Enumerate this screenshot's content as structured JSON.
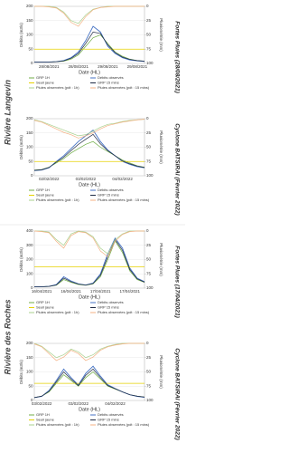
{
  "groups": [
    "Rivière Langevin",
    "Rivière des Roches"
  ],
  "chart_data": [
    {
      "type": "line",
      "title": "Fortes Pluies (28/08/2021)",
      "xlabel": "Date (HL)",
      "ylabel": "Débits (m3/s)",
      "y2label": "Pluviométrie (mm)",
      "categories": [
        null,
        null,
        "28/08/2021",
        null,
        null,
        null,
        "28/08/2021",
        null,
        null,
        null,
        "29/08/2021",
        null,
        null,
        null,
        "29/08/2021",
        null
      ],
      "ylim": [
        0,
        200
      ],
      "yticks": [
        0,
        50,
        100,
        150,
        200
      ],
      "y2lim": [
        100,
        0
      ],
      "y2ticks": [
        0,
        25,
        50,
        75,
        100
      ],
      "series": [
        {
          "name": "GRP 1H",
          "color": "#70ad47",
          "values": [
            5,
            5,
            5,
            6,
            8,
            15,
            30,
            60,
            90,
            100,
            70,
            40,
            25,
            15,
            10,
            8
          ]
        },
        {
          "name": "Débits observés",
          "color": "#4472c4",
          "values": [
            5,
            5,
            5,
            6,
            10,
            20,
            40,
            80,
            130,
            110,
            60,
            35,
            20,
            12,
            9,
            7
          ]
        },
        {
          "name": "Seuil jaune",
          "color": "#e6d200",
          "values": [
            50,
            50,
            50,
            50,
            50,
            50,
            50,
            50,
            50,
            50,
            50,
            50,
            50,
            50,
            50,
            50
          ]
        },
        {
          "name": "GRP 15 mins",
          "color": "#1f2a44",
          "values": [
            5,
            5,
            5,
            6,
            9,
            18,
            35,
            70,
            110,
            105,
            65,
            38,
            22,
            14,
            10,
            8
          ]
        },
        {
          "name": "Pluies observées (pdt : 1h)",
          "color": "#a9d18e",
          "axis": "y2",
          "values": [
            0,
            0,
            0,
            2,
            10,
            25,
            30,
            15,
            5,
            2,
            0,
            0,
            0,
            0,
            0,
            0
          ]
        },
        {
          "name": "Pluies observées (pdt : 15 mins)",
          "color": "#f4b183",
          "axis": "y2",
          "values": [
            0,
            0,
            1,
            3,
            12,
            28,
            35,
            18,
            6,
            2,
            1,
            0,
            0,
            0,
            0,
            0
          ]
        }
      ]
    },
    {
      "type": "line",
      "title": "Cyclone BATSIRAI (Février 2022)",
      "xlabel": "Date (HL)",
      "ylabel": "Débits (m3/s)",
      "y2label": "Pluviométrie (mm)",
      "categories": [
        null,
        null,
        "02/02/2022",
        null,
        null,
        null,
        null,
        "03/02/2022",
        null,
        null,
        null,
        null,
        "04/02/2022",
        null,
        null,
        null
      ],
      "ylim": [
        0,
        200
      ],
      "yticks": [
        0,
        50,
        100,
        150,
        200
      ],
      "y2lim": [
        100,
        0
      ],
      "y2ticks": [
        0,
        25,
        50,
        75,
        100
      ],
      "series": [
        {
          "name": "GRP 1H",
          "color": "#70ad47",
          "values": [
            20,
            22,
            30,
            45,
            60,
            80,
            95,
            110,
            120,
            100,
            85,
            70,
            55,
            45,
            35,
            30
          ]
        },
        {
          "name": "Débits observés",
          "color": "#4472c4",
          "values": [
            18,
            20,
            28,
            50,
            70,
            95,
            120,
            140,
            160,
            120,
            90,
            70,
            50,
            40,
            32,
            28
          ]
        },
        {
          "name": "Seuil jaune",
          "color": "#e6d200",
          "values": [
            50,
            50,
            50,
            50,
            50,
            50,
            50,
            50,
            50,
            50,
            50,
            50,
            50,
            50,
            50,
            50
          ]
        },
        {
          "name": "GRP 15 mins",
          "color": "#1f2a44",
          "values": [
            19,
            21,
            29,
            48,
            65,
            88,
            110,
            128,
            145,
            112,
            88,
            70,
            52,
            42,
            34,
            29
          ]
        },
        {
          "name": "Pluies observées (pdt : 1h)",
          "color": "#a9d18e",
          "axis": "y2",
          "values": [
            2,
            5,
            10,
            15,
            20,
            25,
            30,
            28,
            22,
            15,
            10,
            8,
            5,
            3,
            2,
            1
          ]
        },
        {
          "name": "Pluies observées (pdt : 15 mins)",
          "color": "#f4b183",
          "axis": "y2",
          "values": [
            3,
            6,
            12,
            18,
            24,
            28,
            34,
            30,
            25,
            18,
            12,
            9,
            6,
            4,
            2,
            1
          ]
        }
      ]
    },
    {
      "type": "line",
      "title": "Fortes Pluies (17/04/2021)",
      "xlabel": "Date (HL)",
      "ylabel": "Débits (m3/s)",
      "y2label": "Pluviométrie (mm)",
      "categories": [
        null,
        "16/04/2021",
        null,
        null,
        null,
        "16/04/2021",
        null,
        null,
        null,
        "17/04/2021",
        null,
        null,
        null,
        "17/04/2021",
        null,
        null
      ],
      "ylim": [
        0,
        400
      ],
      "yticks": [
        0,
        100,
        200,
        300,
        400
      ],
      "y2lim": [
        100,
        0
      ],
      "y2ticks": [
        0,
        25,
        50,
        75,
        100
      ],
      "series": [
        {
          "name": "GRP 1H",
          "color": "#70ad47",
          "values": [
            10,
            10,
            12,
            20,
            60,
            40,
            25,
            20,
            30,
            80,
            200,
            330,
            250,
            120,
            60,
            40
          ]
        },
        {
          "name": "Débits observés",
          "color": "#4472c4",
          "values": [
            10,
            10,
            12,
            25,
            80,
            50,
            30,
            22,
            35,
            100,
            240,
            350,
            280,
            140,
            70,
            45
          ]
        },
        {
          "name": "Seuil jaune",
          "color": "#e6d200",
          "values": [
            150,
            150,
            150,
            150,
            150,
            150,
            150,
            150,
            150,
            150,
            150,
            150,
            150,
            150,
            150,
            150
          ]
        },
        {
          "name": "GRP 15 mins",
          "color": "#1f2a44",
          "values": [
            10,
            10,
            12,
            22,
            70,
            45,
            28,
            21,
            32,
            90,
            220,
            340,
            265,
            130,
            65,
            42
          ]
        },
        {
          "name": "Pluies observées (pdt : 1h)",
          "color": "#a9d18e",
          "axis": "y2",
          "values": [
            0,
            0,
            2,
            15,
            25,
            5,
            0,
            2,
            10,
            30,
            40,
            15,
            5,
            0,
            0,
            0
          ]
        },
        {
          "name": "Pluies observées (pdt : 15 mins)",
          "color": "#f4b183",
          "axis": "y2",
          "values": [
            0,
            1,
            3,
            18,
            30,
            8,
            1,
            3,
            12,
            35,
            45,
            18,
            6,
            1,
            0,
            0
          ]
        }
      ]
    },
    {
      "type": "line",
      "title": "Cyclone BATSIRAI (Février 2022)",
      "xlabel": "Date (HL)",
      "ylabel": "Débits (m3/s)",
      "y2label": "Pluviométrie (mm)",
      "categories": [
        null,
        "03/02/2022",
        null,
        null,
        null,
        null,
        "03/02/2022",
        null,
        null,
        null,
        null,
        "04/02/2022",
        null,
        null,
        null,
        null
      ],
      "ylim": [
        0,
        200
      ],
      "yticks": [
        0,
        50,
        100,
        150,
        200
      ],
      "y2lim": [
        100,
        0
      ],
      "y2ticks": [
        0,
        25,
        50,
        75,
        100
      ],
      "series": [
        {
          "name": "GRP 1H",
          "color": "#70ad47",
          "values": [
            10,
            15,
            30,
            60,
            90,
            70,
            50,
            80,
            100,
            75,
            50,
            40,
            30,
            20,
            15,
            12
          ]
        },
        {
          "name": "Débits observés",
          "color": "#4472c4",
          "values": [
            10,
            14,
            35,
            70,
            110,
            80,
            55,
            95,
            120,
            85,
            55,
            42,
            30,
            20,
            14,
            11
          ]
        },
        {
          "name": "Seuil jaune",
          "color": "#e6d200",
          "values": [
            60,
            60,
            60,
            60,
            60,
            60,
            60,
            60,
            60,
            60,
            60,
            60,
            60,
            60,
            60,
            60
          ]
        },
        {
          "name": "GRP 15 mins",
          "color": "#1f2a44",
          "values": [
            10,
            15,
            32,
            65,
            100,
            75,
            52,
            88,
            110,
            80,
            52,
            41,
            30,
            20,
            15,
            12
          ]
        },
        {
          "name": "Pluies observées (pdt : 1h)",
          "color": "#a9d18e",
          "axis": "y2",
          "values": [
            0,
            5,
            15,
            25,
            20,
            10,
            15,
            25,
            20,
            10,
            5,
            2,
            0,
            0,
            0,
            0
          ]
        },
        {
          "name": "Pluies observées (pdt : 15 mins)",
          "color": "#f4b183",
          "axis": "y2",
          "values": [
            1,
            6,
            18,
            30,
            24,
            12,
            18,
            30,
            24,
            12,
            6,
            3,
            1,
            0,
            0,
            0
          ]
        }
      ]
    }
  ]
}
